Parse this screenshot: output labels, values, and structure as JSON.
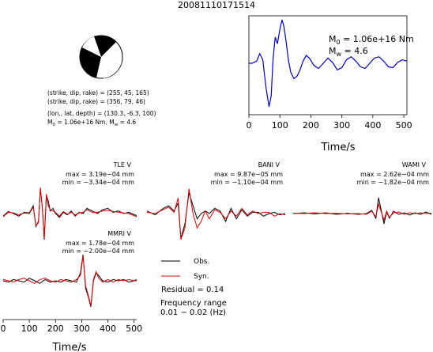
{
  "title": "20081110171514",
  "focal": {
    "line1": "(strike, dip, rake) = (255, 45, 165)",
    "line2": "(strike, dip, rake) = (356, 79, 46)",
    "line3": "(lon., lat, depth) = (130.3, -6.3, 100)",
    "m0_line": "M",
    "m0_rest": " = 1.06e+16 Nm, M",
    "mw_rest": " = 4.6"
  },
  "stf": {
    "m0_label": "M",
    "m0_sub": "0",
    "m0_value": " = 1.06e+16 Nm",
    "mw_label": "M",
    "mw_sub": "w",
    "mw_value": " = 4.6"
  },
  "legend": {
    "obs": "Obs.",
    "syn": "Syn.",
    "residual": "Residual = 0.14",
    "freq_label": "Frequency range",
    "freq_value": "0.01 − 0.02 (Hz)"
  },
  "colors": {
    "obs": "#000000",
    "syn": "#e00000",
    "stf": "#0000cc"
  },
  "chart_data": [
    {
      "type": "line",
      "name": "source-time-function",
      "xlabel": "Time/s",
      "xlim": [
        0,
        510
      ],
      "xticks": [
        0,
        100,
        200,
        300,
        400,
        500
      ],
      "series": [
        {
          "name": "",
          "x": [
            0,
            10,
            25,
            35,
            45,
            55,
            65,
            72,
            78,
            85,
            92,
            100,
            107,
            113,
            120,
            127,
            135,
            145,
            155,
            165,
            175,
            185,
            195,
            210,
            225,
            240,
            255,
            270,
            285,
            300,
            315,
            330,
            345,
            360,
            375,
            390,
            405,
            420,
            435,
            450,
            465,
            480,
            495,
            510
          ],
          "y": [
            0,
            0,
            0.05,
            0.22,
            0.08,
            -0.55,
            -1.0,
            -0.75,
            0.1,
            0.6,
            0.45,
            0.78,
            1.0,
            0.85,
            0.5,
            0.1,
            -0.2,
            -0.35,
            -0.3,
            -0.15,
            0.05,
            0.18,
            0.12,
            -0.05,
            -0.12,
            0.0,
            0.12,
            0.02,
            -0.15,
            -0.1,
            0.08,
            0.15,
            0.05,
            -0.08,
            -0.12,
            0.0,
            0.12,
            0.15,
            0.05,
            -0.08,
            -0.1,
            0.02,
            0.08,
            0.05
          ]
        }
      ]
    },
    {
      "type": "line",
      "name": "waveforms",
      "xlabel": "Time/s",
      "xlim": [
        0,
        510
      ],
      "xticks": [
        0,
        100,
        200,
        300,
        400,
        500
      ],
      "stations": [
        {
          "label": "TLE V",
          "max": "max = 3.19e−04 mm",
          "min": "min = −3.34e−04 mm",
          "x": [
            0,
            20,
            40,
            60,
            80,
            100,
            115,
            125,
            135,
            142,
            150,
            157,
            165,
            172,
            180,
            190,
            200,
            215,
            230,
            245,
            260,
            275,
            290,
            305,
            320,
            340,
            360,
            380,
            400,
            420,
            440,
            460,
            480,
            510
          ],
          "obs": [
            -0.1,
            0.08,
            0.0,
            -0.1,
            0.05,
            0.02,
            0.3,
            -0.5,
            -0.3,
            0.95,
            0.2,
            -1.0,
            0.7,
            0.5,
            0.1,
            0.2,
            0.0,
            -0.15,
            0.05,
            -0.05,
            0.1,
            -0.1,
            0.05,
            0.0,
            0.2,
            0.1,
            0.0,
            0.15,
            0.2,
            0.05,
            0.1,
            0.0,
            0.05,
            -0.08
          ],
          "syn": [
            -0.12,
            0.05,
            0.02,
            -0.05,
            0.02,
            0.0,
            0.25,
            -0.45,
            -0.35,
            1.0,
            0.15,
            -0.95,
            0.75,
            0.3,
            0.15,
            0.1,
            0.05,
            -0.1,
            0.08,
            -0.02,
            0.05,
            -0.05,
            0.02,
            0.05,
            0.15,
            0.05,
            0.05,
            0.1,
            0.12,
            0.08,
            0.05,
            0.02,
            0.0,
            -0.12
          ]
        },
        {
          "label": "BANI V",
          "max": "max = 9.87e−05 mm",
          "min": "min = −1.10e−04 mm",
          "x": [
            0,
            30,
            60,
            80,
            100,
            115,
            125,
            140,
            155,
            170,
            185,
            200,
            215,
            230,
            250,
            270,
            290,
            310,
            330,
            350,
            370,
            390,
            410,
            430,
            450,
            470,
            490,
            510
          ],
          "obs": [
            0.1,
            -0.05,
            0.2,
            0.3,
            0.1,
            0.4,
            -0.95,
            -0.4,
            0.8,
            0.3,
            -0.2,
            0.0,
            0.1,
            0.0,
            0.2,
            0.1,
            -0.3,
            0.2,
            -0.2,
            0.15,
            -0.1,
            0.05,
            0.05,
            -0.1,
            0.0,
            0.05,
            -0.05,
            0.0
          ],
          "syn": [
            0.05,
            0.0,
            0.15,
            0.25,
            0.05,
            0.6,
            -1.0,
            -0.55,
            0.95,
            0.0,
            -0.55,
            -0.3,
            0.1,
            -0.2,
            0.15,
            0.05,
            -0.2,
            0.1,
            -0.1,
            0.2,
            -0.05,
            0.1,
            0.0,
            0.05,
            0.05,
            -0.1,
            0.0,
            -0.05
          ]
        },
        {
          "label": "WAMI V",
          "max": "max = 2.62e−04 mm",
          "min": "min = −1.82e−04 mm",
          "x": [
            0,
            40,
            80,
            120,
            160,
            200,
            240,
            270,
            290,
            305,
            315,
            325,
            335,
            345,
            355,
            370,
            390,
            410,
            430,
            450,
            470,
            490,
            510
          ],
          "obs": [
            0.0,
            0.05,
            -0.02,
            0.05,
            -0.05,
            0.02,
            -0.05,
            0.0,
            0.2,
            -0.3,
            1.0,
            0.2,
            -0.65,
            0.1,
            -0.3,
            0.15,
            -0.05,
            0.05,
            -0.1,
            0.05,
            -0.05,
            0.1,
            -0.05
          ],
          "syn": [
            0.02,
            0.0,
            0.05,
            0.0,
            0.02,
            -0.02,
            0.0,
            -0.05,
            0.15,
            -0.2,
            0.6,
            0.1,
            -0.4,
            0.15,
            -0.25,
            0.05,
            0.1,
            -0.05,
            0.05,
            0.0,
            0.05,
            0.0,
            0.02
          ]
        },
        {
          "label": "MMRI V",
          "max": "max = 1.78e−04 mm",
          "min": "min = −2.00e−04 mm",
          "x": [
            0,
            20,
            40,
            60,
            80,
            100,
            120,
            140,
            160,
            180,
            200,
            220,
            240,
            260,
            280,
            295,
            305,
            315,
            325,
            335,
            345,
            355,
            365,
            380,
            400,
            420,
            440,
            460,
            480,
            500,
            510
          ],
          "obs": [
            0.0,
            -0.05,
            0.05,
            0.0,
            -0.05,
            0.1,
            0.0,
            -0.1,
            0.05,
            -0.05,
            0.0,
            -0.05,
            0.05,
            0.0,
            -0.05,
            0.3,
            1.0,
            -0.3,
            -0.6,
            -1.0,
            0.0,
            0.3,
            0.2,
            0.0,
            -0.05,
            0.05,
            0.0,
            0.05,
            -0.05,
            0.0,
            0.05
          ],
          "syn": [
            0.05,
            0.0,
            -0.05,
            0.05,
            0.1,
            0.0,
            -0.1,
            0.05,
            0.1,
            0.0,
            -0.05,
            0.05,
            0.0,
            -0.05,
            0.05,
            0.2,
            0.95,
            -0.2,
            -0.55,
            -0.95,
            0.05,
            0.35,
            0.1,
            -0.05,
            0.05,
            -0.05,
            0.05,
            0.0,
            0.05,
            0.0,
            0.0
          ]
        }
      ]
    }
  ]
}
